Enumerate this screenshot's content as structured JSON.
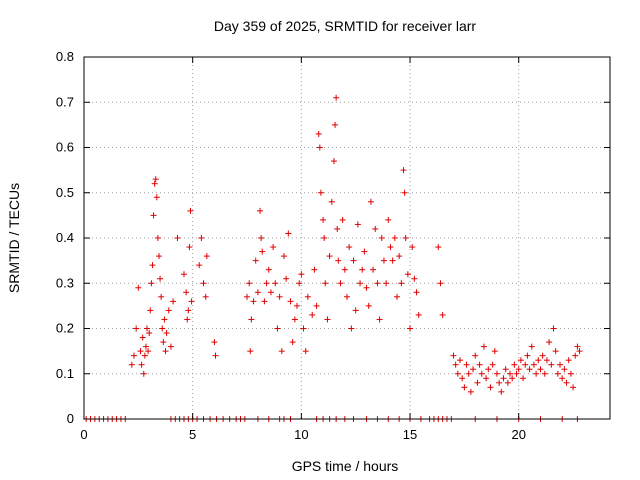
{
  "chart_data": {
    "type": "scatter",
    "title": "Day 359 of 2025, SRMTID for receiver larr",
    "xlabel": "GPS time / hours",
    "ylabel": "SRMTID / TECUs",
    "xlim": [
      0,
      24.2
    ],
    "ylim": [
      0,
      0.8
    ],
    "xticks": [
      0,
      5,
      10,
      15,
      20
    ],
    "xtick_labels": [
      "0",
      "5",
      "10",
      "15",
      "20"
    ],
    "yticks": [
      0,
      0.1,
      0.2,
      0.3,
      0.4,
      0.5,
      0.6,
      0.7,
      0.8
    ],
    "ytick_labels": [
      "0",
      "0.1",
      "0.2",
      "0.3",
      "0.4",
      "0.5",
      "0.6",
      "0.7",
      "0.8"
    ],
    "grid": true,
    "marker": "+",
    "color": "#e00000",
    "series": [
      {
        "name": "SRMTID",
        "points": [
          [
            2.2,
            0.12
          ],
          [
            2.3,
            0.14
          ],
          [
            2.4,
            0.2
          ],
          [
            2.5,
            0.29
          ],
          [
            2.6,
            0.15
          ],
          [
            2.65,
            0.12
          ],
          [
            2.7,
            0.18
          ],
          [
            2.75,
            0.1
          ],
          [
            2.8,
            0.14
          ],
          [
            2.85,
            0.16
          ],
          [
            2.9,
            0.2
          ],
          [
            2.95,
            0.15
          ],
          [
            3.0,
            0.19
          ],
          [
            3.05,
            0.24
          ],
          [
            3.1,
            0.3
          ],
          [
            3.15,
            0.34
          ],
          [
            3.2,
            0.45
          ],
          [
            3.25,
            0.52
          ],
          [
            3.3,
            0.53
          ],
          [
            3.35,
            0.49
          ],
          [
            3.4,
            0.4
          ],
          [
            3.45,
            0.36
          ],
          [
            3.5,
            0.31
          ],
          [
            3.55,
            0.27
          ],
          [
            3.6,
            0.2
          ],
          [
            3.65,
            0.17
          ],
          [
            3.7,
            0.22
          ],
          [
            3.75,
            0.15
          ],
          [
            3.8,
            0.19
          ],
          [
            3.9,
            0.24
          ],
          [
            4.0,
            0.16
          ],
          [
            4.1,
            0.26
          ],
          [
            4.3,
            0.4
          ],
          [
            4.6,
            0.32
          ],
          [
            4.7,
            0.28
          ],
          [
            4.75,
            0.22
          ],
          [
            4.8,
            0.24
          ],
          [
            4.85,
            0.38
          ],
          [
            4.9,
            0.46
          ],
          [
            4.95,
            0.26
          ],
          [
            5.3,
            0.34
          ],
          [
            5.4,
            0.4
          ],
          [
            5.5,
            0.3
          ],
          [
            5.6,
            0.27
          ],
          [
            5.65,
            0.36
          ],
          [
            6.0,
            0.17
          ],
          [
            6.05,
            0.14
          ],
          [
            7.5,
            0.27
          ],
          [
            7.6,
            0.3
          ],
          [
            7.65,
            0.15
          ],
          [
            7.7,
            0.22
          ],
          [
            7.8,
            0.26
          ],
          [
            7.9,
            0.35
          ],
          [
            8.0,
            0.28
          ],
          [
            8.1,
            0.46
          ],
          [
            8.15,
            0.4
          ],
          [
            8.2,
            0.37
          ],
          [
            8.3,
            0.26
          ],
          [
            8.4,
            0.3
          ],
          [
            8.5,
            0.33
          ],
          [
            8.6,
            0.28
          ],
          [
            8.7,
            0.38
          ],
          [
            8.8,
            0.3
          ],
          [
            8.9,
            0.2
          ],
          [
            9.0,
            0.27
          ],
          [
            9.1,
            0.15
          ],
          [
            9.2,
            0.36
          ],
          [
            9.3,
            0.31
          ],
          [
            9.4,
            0.41
          ],
          [
            9.5,
            0.26
          ],
          [
            9.6,
            0.17
          ],
          [
            9.7,
            0.22
          ],
          [
            9.8,
            0.25
          ],
          [
            9.9,
            0.3
          ],
          [
            10.0,
            0.32
          ],
          [
            10.1,
            0.2
          ],
          [
            10.2,
            0.15
          ],
          [
            10.3,
            0.27
          ],
          [
            10.5,
            0.23
          ],
          [
            10.6,
            0.33
          ],
          [
            10.7,
            0.25
          ],
          [
            10.8,
            0.63
          ],
          [
            10.85,
            0.6
          ],
          [
            10.9,
            0.5
          ],
          [
            11.0,
            0.44
          ],
          [
            11.05,
            0.4
          ],
          [
            11.1,
            0.3
          ],
          [
            11.2,
            0.22
          ],
          [
            11.3,
            0.36
          ],
          [
            11.4,
            0.48
          ],
          [
            11.5,
            0.57
          ],
          [
            11.55,
            0.65
          ],
          [
            11.6,
            0.71
          ],
          [
            11.65,
            0.42
          ],
          [
            11.7,
            0.35
          ],
          [
            11.8,
            0.3
          ],
          [
            11.9,
            0.44
          ],
          [
            12.0,
            0.33
          ],
          [
            12.1,
            0.27
          ],
          [
            12.2,
            0.38
          ],
          [
            12.3,
            0.2
          ],
          [
            12.4,
            0.35
          ],
          [
            12.5,
            0.24
          ],
          [
            12.6,
            0.43
          ],
          [
            12.7,
            0.3
          ],
          [
            12.8,
            0.33
          ],
          [
            12.9,
            0.37
          ],
          [
            13.0,
            0.29
          ],
          [
            13.1,
            0.25
          ],
          [
            13.2,
            0.48
          ],
          [
            13.3,
            0.33
          ],
          [
            13.4,
            0.42
          ],
          [
            13.5,
            0.3
          ],
          [
            13.6,
            0.22
          ],
          [
            13.7,
            0.4
          ],
          [
            13.8,
            0.35
          ],
          [
            13.9,
            0.3
          ],
          [
            14.0,
            0.44
          ],
          [
            14.1,
            0.38
          ],
          [
            14.2,
            0.35
          ],
          [
            14.3,
            0.4
          ],
          [
            14.4,
            0.27
          ],
          [
            14.5,
            0.36
          ],
          [
            14.6,
            0.3
          ],
          [
            14.7,
            0.55
          ],
          [
            14.75,
            0.5
          ],
          [
            14.8,
            0.4
          ],
          [
            14.9,
            0.32
          ],
          [
            15.0,
            0.2
          ],
          [
            15.1,
            0.38
          ],
          [
            15.2,
            0.31
          ],
          [
            15.3,
            0.28
          ],
          [
            15.4,
            0.23
          ],
          [
            16.3,
            0.38
          ],
          [
            16.4,
            0.3
          ],
          [
            16.5,
            0.23
          ],
          [
            17.0,
            0.14
          ],
          [
            17.1,
            0.12
          ],
          [
            17.2,
            0.1
          ],
          [
            17.3,
            0.13
          ],
          [
            17.4,
            0.09
          ],
          [
            17.5,
            0.07
          ],
          [
            17.6,
            0.12
          ],
          [
            17.7,
            0.1
          ],
          [
            17.8,
            0.06
          ],
          [
            17.9,
            0.11
          ],
          [
            18.0,
            0.14
          ],
          [
            18.1,
            0.08
          ],
          [
            18.2,
            0.12
          ],
          [
            18.3,
            0.1
          ],
          [
            18.4,
            0.16
          ],
          [
            18.5,
            0.09
          ],
          [
            18.6,
            0.11
          ],
          [
            18.7,
            0.07
          ],
          [
            18.8,
            0.12
          ],
          [
            18.9,
            0.15
          ],
          [
            19.0,
            0.1
          ],
          [
            19.1,
            0.08
          ],
          [
            19.2,
            0.06
          ],
          [
            19.3,
            0.09
          ],
          [
            19.4,
            0.11
          ],
          [
            19.5,
            0.08
          ],
          [
            19.6,
            0.1
          ],
          [
            19.7,
            0.09
          ],
          [
            19.8,
            0.12
          ],
          [
            19.9,
            0.1
          ],
          [
            20.0,
            0.11
          ],
          [
            20.1,
            0.13
          ],
          [
            20.2,
            0.09
          ],
          [
            20.3,
            0.12
          ],
          [
            20.4,
            0.14
          ],
          [
            20.5,
            0.11
          ],
          [
            20.6,
            0.16
          ],
          [
            20.7,
            0.12
          ],
          [
            20.8,
            0.1
          ],
          [
            20.9,
            0.13
          ],
          [
            21.0,
            0.11
          ],
          [
            21.1,
            0.14
          ],
          [
            21.2,
            0.1
          ],
          [
            21.3,
            0.13
          ],
          [
            21.4,
            0.17
          ],
          [
            21.5,
            0.12
          ],
          [
            21.6,
            0.2
          ],
          [
            21.7,
            0.15
          ],
          [
            21.8,
            0.1
          ],
          [
            21.9,
            0.12
          ],
          [
            22.0,
            0.09
          ],
          [
            22.1,
            0.11
          ],
          [
            22.2,
            0.08
          ],
          [
            22.3,
            0.13
          ],
          [
            22.4,
            0.1
          ],
          [
            22.5,
            0.07
          ],
          [
            22.6,
            0.14
          ],
          [
            22.7,
            0.16
          ],
          [
            22.8,
            0.15
          ],
          [
            0.1,
            0
          ],
          [
            0.3,
            0
          ],
          [
            0.5,
            0
          ],
          [
            0.7,
            0
          ],
          [
            0.9,
            0
          ],
          [
            1.1,
            0
          ],
          [
            1.3,
            0
          ],
          [
            1.5,
            0
          ],
          [
            1.7,
            0
          ],
          [
            1.9,
            0
          ],
          [
            4.0,
            0
          ],
          [
            4.2,
            0
          ],
          [
            4.4,
            0
          ],
          [
            4.6,
            0
          ],
          [
            4.8,
            0
          ],
          [
            5.0,
            0
          ],
          [
            5.2,
            0
          ],
          [
            5.5,
            0
          ],
          [
            5.8,
            0
          ],
          [
            6.1,
            0
          ],
          [
            6.4,
            0
          ],
          [
            6.7,
            0
          ],
          [
            7.0,
            0
          ],
          [
            7.2,
            0
          ],
          [
            7.4,
            0
          ],
          [
            8.0,
            0
          ],
          [
            8.5,
            0
          ],
          [
            9.0,
            0
          ],
          [
            9.2,
            0
          ],
          [
            9.5,
            0
          ],
          [
            10.7,
            0
          ],
          [
            11.0,
            0
          ],
          [
            11.3,
            0
          ],
          [
            11.6,
            0
          ],
          [
            12.0,
            0
          ],
          [
            12.4,
            0
          ],
          [
            13.0,
            0
          ],
          [
            13.5,
            0
          ],
          [
            14.0,
            0
          ],
          [
            14.5,
            0
          ],
          [
            15.0,
            0
          ],
          [
            15.5,
            0
          ],
          [
            15.9,
            0
          ],
          [
            16.1,
            0
          ],
          [
            16.3,
            0
          ],
          [
            16.5,
            0
          ],
          [
            16.7,
            0
          ],
          [
            16.9,
            0
          ],
          [
            18.0,
            0
          ],
          [
            19.0,
            0
          ],
          [
            20.0,
            0
          ],
          [
            21.0,
            0
          ],
          [
            22.0,
            0
          ],
          [
            22.7,
            0
          ]
        ]
      }
    ]
  }
}
